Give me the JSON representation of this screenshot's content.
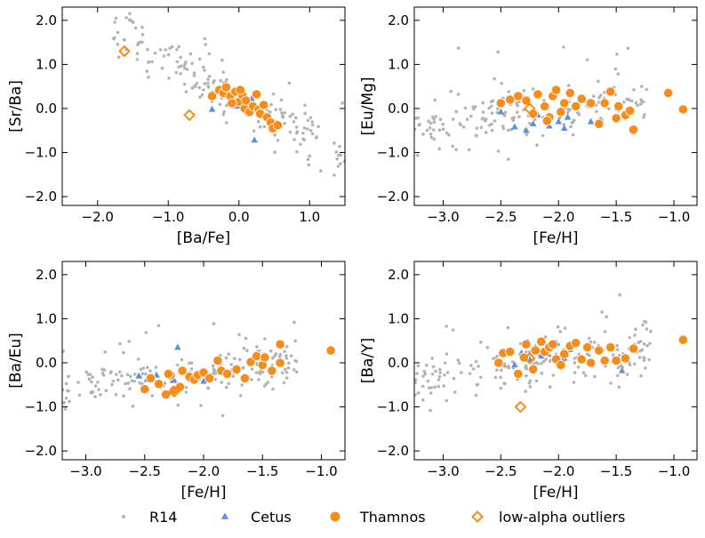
{
  "colors": {
    "r14": "#b3b3b3",
    "cetus": "#5b8fe3",
    "thamnos": "#f68c1a",
    "outlier": "#f68c1a"
  },
  "legend": [
    {
      "key": "r14",
      "label": "R14",
      "marker": "small-circle"
    },
    {
      "key": "cetus",
      "label": "Cetus",
      "marker": "triangle"
    },
    {
      "key": "thamnos",
      "label": "Thamnos",
      "marker": "circle"
    },
    {
      "key": "outlier",
      "label": "low-alpha outliers",
      "marker": "open-diamond"
    }
  ],
  "chart_data": [
    {
      "type": "scatter",
      "xlabel": "[Ba/Fe]",
      "ylabel": "[Sr/Ba]",
      "xlim": [
        -2.5,
        1.5
      ],
      "ylim": [
        -2.2,
        2.3
      ],
      "xticks": [
        -2.0,
        -1.0,
        0.0,
        1.0
      ],
      "xtick_labels": [
        "−2.0",
        "−1.0",
        "0.0",
        "1.0"
      ],
      "yticks": [
        2.0,
        1.0,
        0.0,
        -1.0,
        -2.0
      ],
      "ytick_labels": [
        "2.0",
        "1.0",
        "0.0",
        "−1.0",
        "−2.0"
      ],
      "r14": {
        "x_range": [
          -1.8,
          1.5
        ],
        "slope": -0.9,
        "intercept": 0.2,
        "scatter": 0.28,
        "n": 190
      },
      "cetus": [
        [
          -0.38,
          -0.02
        ],
        [
          -0.08,
          0.08
        ],
        [
          0.0,
          0.05
        ],
        [
          0.12,
          -0.08
        ],
        [
          0.22,
          -0.72
        ],
        [
          0.18,
          0.22
        ],
        [
          -0.15,
          0.1
        ]
      ],
      "thamnos": [
        [
          -0.38,
          0.28
        ],
        [
          -0.28,
          0.42
        ],
        [
          -0.22,
          0.35
        ],
        [
          -0.18,
          0.48
        ],
        [
          -0.12,
          0.28
        ],
        [
          -0.05,
          0.38
        ],
        [
          0.0,
          0.15
        ],
        [
          0.05,
          0.3
        ],
        [
          0.08,
          0.0
        ],
        [
          0.1,
          0.18
        ],
        [
          0.15,
          -0.08
        ],
        [
          0.2,
          0.05
        ],
        [
          0.25,
          0.32
        ],
        [
          0.28,
          -0.02
        ],
        [
          0.3,
          -0.12
        ],
        [
          0.35,
          0.08
        ],
        [
          0.4,
          -0.2
        ],
        [
          0.45,
          -0.32
        ],
        [
          0.48,
          -0.45
        ],
        [
          0.55,
          -0.38
        ],
        [
          -0.1,
          0.12
        ],
        [
          0.02,
          0.42
        ]
      ],
      "outliers": [
        [
          -1.62,
          1.3
        ],
        [
          -0.7,
          -0.15
        ]
      ]
    },
    {
      "type": "scatter",
      "xlabel": "[Fe/H]",
      "ylabel": "[Eu/Mg]",
      "xlim": [
        -3.25,
        -0.8
      ],
      "ylim": [
        -2.2,
        2.3
      ],
      "xticks": [
        -3.0,
        -2.5,
        -2.0,
        -1.5,
        -1.0
      ],
      "xtick_labels": [
        "−3.0",
        "−2.5",
        "−2.0",
        "−1.5",
        "−1.0"
      ],
      "yticks": [
        2.0,
        1.0,
        0.0,
        -1.0,
        -2.0
      ],
      "ytick_labels": [
        "2.0",
        "1.0",
        "0.0",
        "−1.0",
        "−2.0"
      ],
      "r14": {
        "x_range": [
          -3.25,
          -1.2
        ],
        "slope": 0.35,
        "intercept": 0.65,
        "scatter": 0.28,
        "n": 180
      },
      "cetus": [
        [
          -2.5,
          -0.08
        ],
        [
          -2.38,
          -0.42
        ],
        [
          -2.28,
          -0.5
        ],
        [
          -2.22,
          -0.35
        ],
        [
          -2.18,
          -0.15
        ],
        [
          -2.08,
          -0.4
        ],
        [
          -2.0,
          -0.3
        ],
        [
          -1.95,
          -0.45
        ],
        [
          -1.72,
          -0.3
        ],
        [
          -1.92,
          -0.2
        ]
      ],
      "thamnos": [
        [
          -2.5,
          0.12
        ],
        [
          -2.42,
          0.2
        ],
        [
          -2.35,
          0.28
        ],
        [
          -2.28,
          0.18
        ],
        [
          -2.22,
          -0.12
        ],
        [
          -2.18,
          0.32
        ],
        [
          -2.12,
          0.05
        ],
        [
          -2.08,
          -0.2
        ],
        [
          -2.05,
          0.28
        ],
        [
          -2.02,
          0.42
        ],
        [
          -1.98,
          -0.08
        ],
        [
          -1.95,
          0.12
        ],
        [
          -1.9,
          0.35
        ],
        [
          -1.85,
          0.05
        ],
        [
          -1.8,
          0.22
        ],
        [
          -1.72,
          0.12
        ],
        [
          -1.65,
          -0.35
        ],
        [
          -1.6,
          0.12
        ],
        [
          -1.55,
          0.38
        ],
        [
          -1.5,
          -0.22
        ],
        [
          -1.48,
          0.05
        ],
        [
          -1.42,
          -0.15
        ],
        [
          -1.38,
          -0.05
        ],
        [
          -1.35,
          -0.48
        ],
        [
          -1.05,
          0.35
        ],
        [
          -0.92,
          -0.02
        ],
        [
          -2.1,
          -0.28
        ]
      ],
      "outliers": [
        [
          -2.25,
          0.0
        ]
      ]
    },
    {
      "type": "scatter",
      "xlabel": "[Fe/H]",
      "ylabel": "[Ba/Eu]",
      "xlim": [
        -3.2,
        -0.8
      ],
      "ylim": [
        -2.2,
        2.3
      ],
      "xticks": [
        -3.0,
        -2.5,
        -2.0,
        -1.5,
        -1.0
      ],
      "xtick_labels": [
        "−3.0",
        "−2.5",
        "−2.0",
        "−1.5",
        "−1.0"
      ],
      "yticks": [
        2.0,
        1.0,
        0.0,
        -1.0,
        -2.0
      ],
      "ytick_labels": [
        "2.0",
        "1.0",
        "0.0",
        "−1.0",
        "−2.0"
      ],
      "r14": {
        "x_range": [
          -3.2,
          -1.2
        ],
        "slope": 0.35,
        "intercept": 0.45,
        "scatter": 0.25,
        "n": 180
      },
      "cetus": [
        [
          -2.55,
          -0.3
        ],
        [
          -2.48,
          -0.38
        ],
        [
          -2.4,
          -0.28
        ],
        [
          -2.25,
          -0.4
        ],
        [
          -2.22,
          0.35
        ],
        [
          -2.18,
          -0.2
        ],
        [
          -2.05,
          -0.35
        ],
        [
          -2.0,
          -0.42
        ],
        [
          -1.95,
          -0.3
        ]
      ],
      "thamnos": [
        [
          -2.5,
          -0.6
        ],
        [
          -2.45,
          -0.35
        ],
        [
          -2.38,
          -0.48
        ],
        [
          -2.32,
          -0.72
        ],
        [
          -2.28,
          -0.28
        ],
        [
          -2.25,
          -0.62
        ],
        [
          -2.2,
          -0.55
        ],
        [
          -2.18,
          -0.18
        ],
        [
          -2.12,
          -0.32
        ],
        [
          -2.08,
          -0.38
        ],
        [
          -2.05,
          -0.28
        ],
        [
          -2.0,
          -0.22
        ],
        [
          -1.95,
          -0.35
        ],
        [
          -1.88,
          0.05
        ],
        [
          -1.85,
          -0.18
        ],
        [
          -1.8,
          -0.25
        ],
        [
          -1.72,
          -0.15
        ],
        [
          -1.65,
          -0.35
        ],
        [
          -1.6,
          0.02
        ],
        [
          -1.55,
          0.15
        ],
        [
          -1.5,
          -0.05
        ],
        [
          -1.48,
          0.12
        ],
        [
          -1.42,
          -0.18
        ],
        [
          -1.35,
          0.42
        ],
        [
          -1.35,
          0.0
        ],
        [
          -0.92,
          0.28
        ],
        [
          -2.3,
          -0.25
        ]
      ],
      "outliers": [
        [
          -2.25,
          -0.65
        ]
      ]
    },
    {
      "type": "scatter",
      "xlabel": "[Fe/H]",
      "ylabel": "[Ba/Y]",
      "xlim": [
        -3.25,
        -0.8
      ],
      "ylim": [
        -2.2,
        2.3
      ],
      "xticks": [
        -3.0,
        -2.5,
        -2.0,
        -1.5,
        -1.0
      ],
      "xtick_labels": [
        "−3.0",
        "−2.5",
        "−2.0",
        "−1.5",
        "−1.0"
      ],
      "yticks": [
        2.0,
        1.0,
        0.0,
        -1.0,
        -2.0
      ],
      "ytick_labels": [
        "2.0",
        "1.0",
        "0.0",
        "−1.0",
        "−2.0"
      ],
      "r14": {
        "x_range": [
          -3.25,
          -1.2
        ],
        "slope": 0.35,
        "intercept": 0.75,
        "scatter": 0.3,
        "n": 190
      },
      "cetus": [
        [
          -2.38,
          -0.05
        ],
        [
          -2.32,
          0.22
        ],
        [
          -2.25,
          0.08
        ],
        [
          -2.2,
          0.35
        ],
        [
          -2.15,
          0.15
        ],
        [
          -2.1,
          0.2
        ],
        [
          -2.02,
          0.45
        ],
        [
          -1.95,
          0.1
        ],
        [
          -1.9,
          0.3
        ],
        [
          -1.45,
          -0.18
        ]
      ],
      "thamnos": [
        [
          -2.48,
          0.22
        ],
        [
          -2.42,
          0.25
        ],
        [
          -2.35,
          -0.25
        ],
        [
          -2.3,
          0.12
        ],
        [
          -2.28,
          0.42
        ],
        [
          -2.22,
          -0.15
        ],
        [
          -2.2,
          0.28
        ],
        [
          -2.15,
          0.48
        ],
        [
          -2.12,
          0.25
        ],
        [
          -2.08,
          0.35
        ],
        [
          -2.05,
          0.42
        ],
        [
          -2.02,
          0.08
        ],
        [
          -1.98,
          -0.05
        ],
        [
          -1.95,
          0.2
        ],
        [
          -1.9,
          0.38
        ],
        [
          -1.85,
          0.45
        ],
        [
          -1.8,
          0.08
        ],
        [
          -1.75,
          0.35
        ],
        [
          -1.72,
          0.0
        ],
        [
          -1.65,
          0.28
        ],
        [
          -1.6,
          0.05
        ],
        [
          -1.55,
          0.35
        ],
        [
          -1.5,
          0.05
        ],
        [
          -1.42,
          0.1
        ],
        [
          -1.35,
          0.32
        ],
        [
          -0.92,
          0.52
        ],
        [
          -2.52,
          0.0
        ]
      ],
      "outliers": [
        [
          -2.33,
          -1.0
        ],
        [
          -2.25,
          0.1
        ]
      ]
    }
  ]
}
